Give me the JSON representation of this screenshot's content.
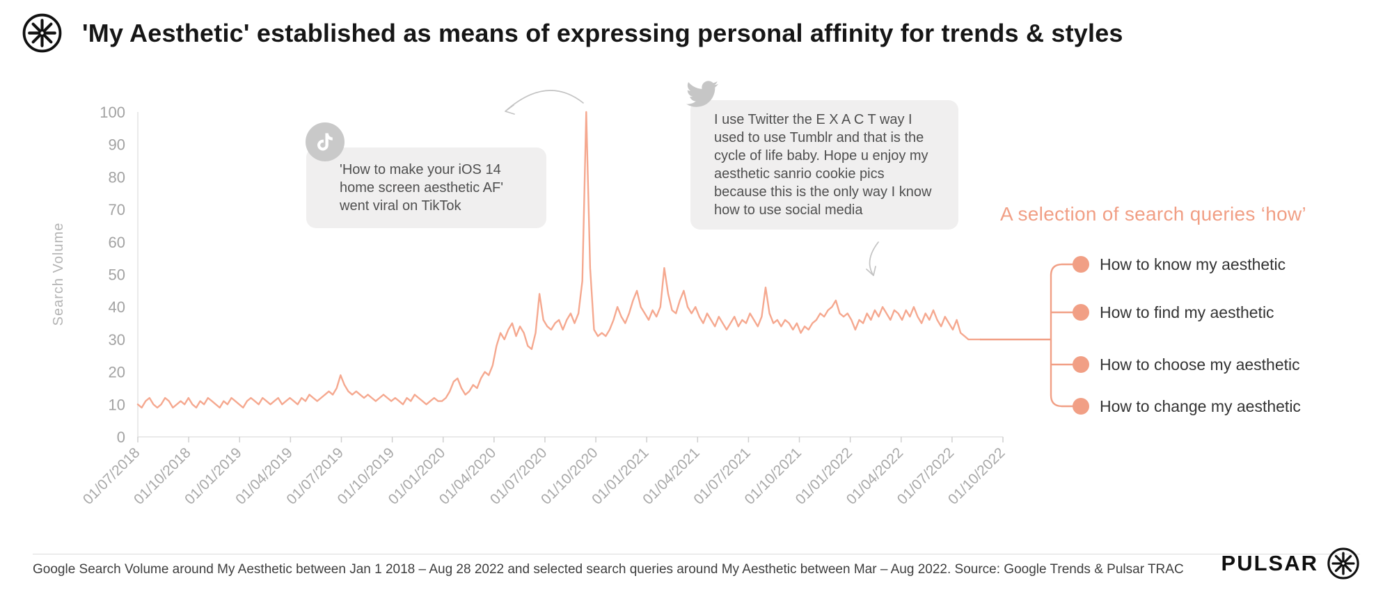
{
  "header": {
    "title": "'My Aesthetic' established as means of expressing personal affinity for trends & styles"
  },
  "colors": {
    "accent": "#f19f85",
    "line": "#f5a88f",
    "callout_bg": "#f0efef",
    "axis_text": "#a5a5a5"
  },
  "chart_data": {
    "type": "line",
    "title": "",
    "xlabel": "",
    "ylabel": "Search Volume",
    "ylim": [
      0,
      100
    ],
    "grid": false,
    "legend": "none",
    "y_ticks": [
      0,
      10,
      20,
      30,
      40,
      50,
      60,
      70,
      80,
      90,
      100
    ],
    "x_tick_labels": [
      "01/07/2018",
      "01/10/2018",
      "01/01/2019",
      "01/04/2019",
      "01/07/2019",
      "01/10/2019",
      "01/01/2020",
      "01/04/2020",
      "01/07/2020",
      "01/10/2020",
      "01/01/2021",
      "01/04/2021",
      "01/07/2021",
      "01/10/2021",
      "01/01/2022",
      "01/04/2022",
      "01/07/2022",
      "01/10/2022"
    ],
    "x_step_days": 7,
    "x_total_days": 1553,
    "series": [
      {
        "name": "Google search volume: my aesthetic",
        "color": "#f5a88f",
        "cadence": "weekly",
        "values": [
          10,
          9,
          11,
          12,
          10,
          9,
          10,
          12,
          11,
          9,
          10,
          11,
          10,
          12,
          10,
          9,
          11,
          10,
          12,
          11,
          10,
          9,
          11,
          10,
          12,
          11,
          10,
          9,
          11,
          12,
          11,
          10,
          12,
          11,
          10,
          11,
          12,
          10,
          11,
          12,
          11,
          10,
          12,
          11,
          13,
          12,
          11,
          12,
          13,
          14,
          13,
          15,
          19,
          16,
          14,
          13,
          14,
          13,
          12,
          13,
          12,
          11,
          12,
          13,
          12,
          11,
          12,
          11,
          10,
          12,
          11,
          13,
          12,
          11,
          10,
          11,
          12,
          11,
          11,
          12,
          14,
          17,
          18,
          15,
          13,
          14,
          16,
          15,
          18,
          20,
          19,
          22,
          28,
          32,
          30,
          33,
          35,
          31,
          34,
          32,
          28,
          27,
          32,
          44,
          36,
          34,
          33,
          35,
          36,
          33,
          36,
          38,
          35,
          38,
          48,
          100,
          52,
          33,
          31,
          32,
          31,
          33,
          36,
          40,
          37,
          35,
          38,
          42,
          45,
          40,
          38,
          36,
          39,
          37,
          40,
          52,
          44,
          39,
          38,
          42,
          45,
          40,
          38,
          40,
          37,
          35,
          38,
          36,
          34,
          37,
          35,
          33,
          35,
          37,
          34,
          36,
          35,
          38,
          36,
          34,
          37,
          46,
          38,
          35,
          36,
          34,
          36,
          35,
          33,
          35,
          32,
          34,
          33,
          35,
          36,
          38,
          37,
          39,
          40,
          42,
          38,
          37,
          38,
          36,
          33,
          36,
          35,
          38,
          36,
          39,
          37,
          40,
          38,
          36,
          39,
          38,
          36,
          39,
          37,
          40,
          37,
          35,
          38,
          36,
          39,
          36,
          34,
          37,
          35,
          33,
          36,
          32,
          31,
          30,
          30,
          30,
          30
        ]
      }
    ],
    "annotations": [
      {
        "icon": "tiktok-icon",
        "text": "'How to make your iOS 14 home screen aesthetic AF' went viral on TikTok"
      },
      {
        "icon": "twitter-icon",
        "text": "I use Twitter the E X A C T way I used to use Tumblr and that is the cycle of life baby. Hope u enjoy my aesthetic sanrio cookie pics because this is the only way I know how to use social media"
      }
    ]
  },
  "queries_panel": {
    "heading": "A selection of search queries ‘how’",
    "items": [
      "How to know my aesthetic",
      "How to find my aesthetic",
      "How to choose my aesthetic",
      "How to change my aesthetic"
    ]
  },
  "footer": {
    "caption": "Google Search Volume around My Aesthetic between Jan 1 2018 – Aug 28 2022 and selected search queries around My Aesthetic between Mar – Aug 2022. Source: Google Trends & Pulsar TRAC",
    "brand": "PULSAR"
  }
}
